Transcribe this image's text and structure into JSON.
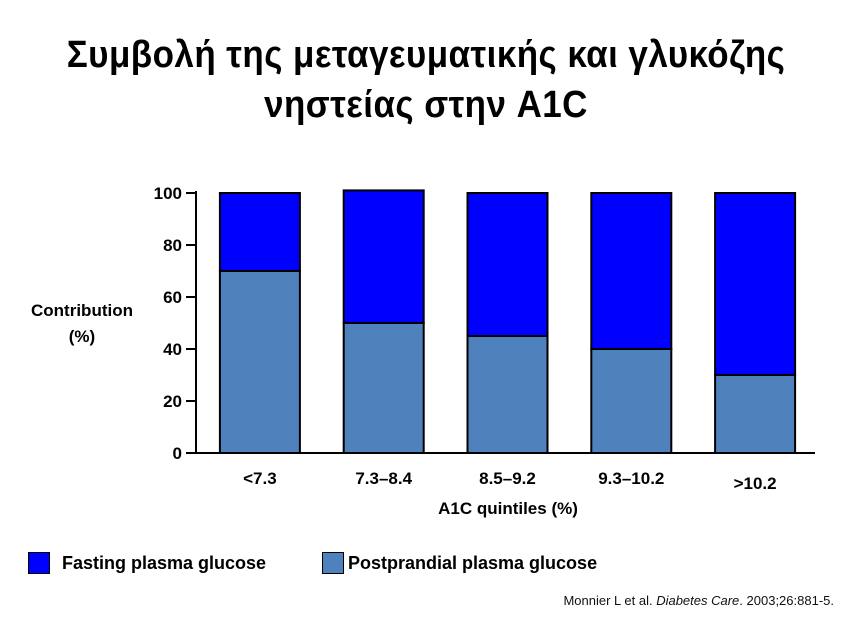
{
  "title": {
    "line1": "Συμβολή της μεταγευματικής  και γλυκόζης",
    "line2": "νηστείας στην A1C"
  },
  "chart_data": {
    "type": "bar",
    "stacked": true,
    "categories": [
      "<7.3",
      "7.3–8.4",
      "8.5–9.2",
      "9.3–10.2",
      ">10.2"
    ],
    "series": [
      {
        "name": "Postprandial plasma glucose",
        "values": [
          70,
          50,
          45,
          40,
          30
        ],
        "color": "#4f81bd"
      },
      {
        "name": "Fasting plasma glucose",
        "values": [
          30,
          51,
          55,
          60,
          70
        ],
        "color": "#0000ff"
      }
    ],
    "xlabel": "A1C quintiles (%)",
    "ylabel_line1": "Contribution",
    "ylabel_line2": "(%)",
    "ylim": [
      0,
      100
    ],
    "yticks": [
      "0",
      "20",
      "40",
      "60",
      "80",
      "100"
    ],
    "ytick_values": [
      0,
      20,
      40,
      60,
      80,
      100
    ],
    "grid": false
  },
  "legend": {
    "fasting_label": "Fasting plasma glucose",
    "postprandial_label": "Postprandial plasma glucose",
    "fasting_color": "#0000ff",
    "postprandial_color": "#4f81bd"
  },
  "citation": {
    "authors": "Monnier L et al. ",
    "journal": "Diabetes Care",
    "details": ". 2003;26:881-5."
  }
}
